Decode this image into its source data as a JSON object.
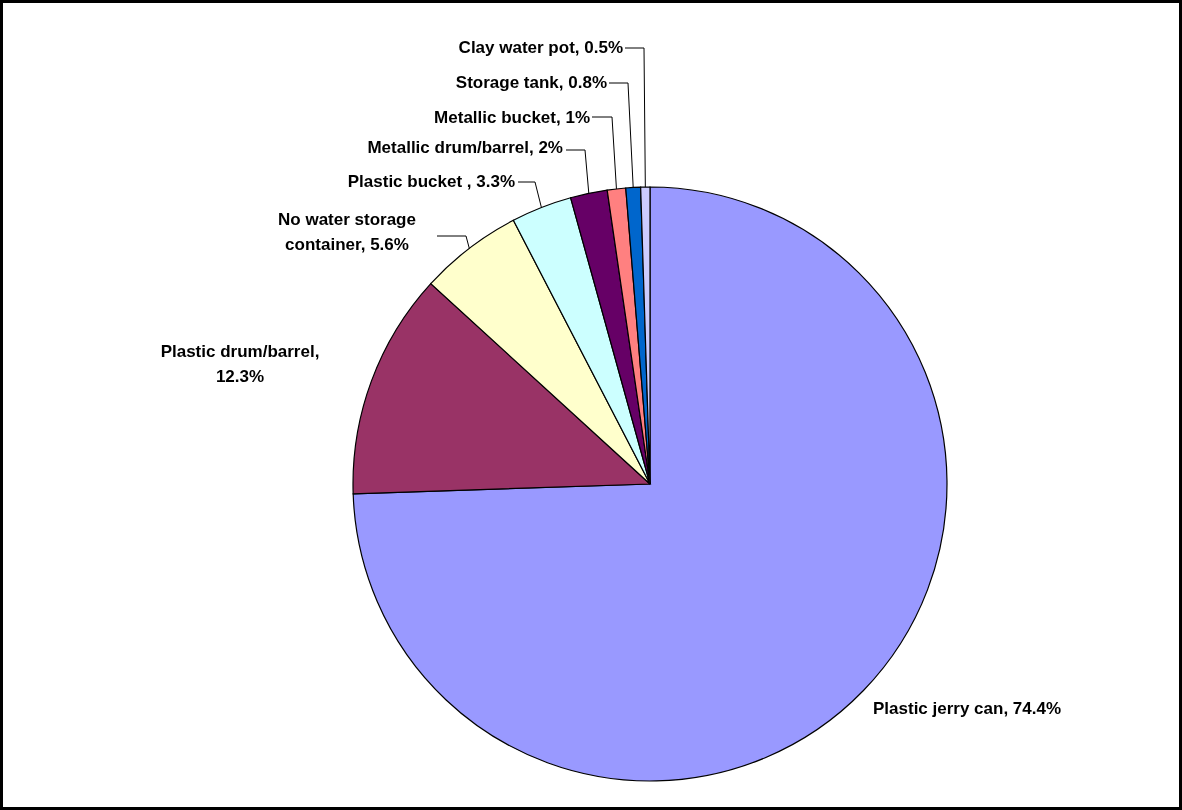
{
  "chart_data": {
    "type": "pie",
    "categories": [
      "Plastic jerry can, 74.4%",
      "Plastic drum/barrel, 12.3%",
      "No water storage container, 5.6%",
      "Plastic bucket , 3.3%",
      "Metallic drum/barrel, 2%",
      "Metallic bucket, 1%",
      "Storage tank, 0.8%",
      "Clay water pot, 0.5%"
    ],
    "values": [
      74.4,
      12.3,
      5.6,
      3.3,
      2,
      1,
      0.8,
      0.5
    ],
    "colors": [
      "#9999ff",
      "#993366",
      "#ffffcc",
      "#ccffff",
      "#660066",
      "#ff8080",
      "#0066cc",
      "#ccccff"
    ]
  }
}
